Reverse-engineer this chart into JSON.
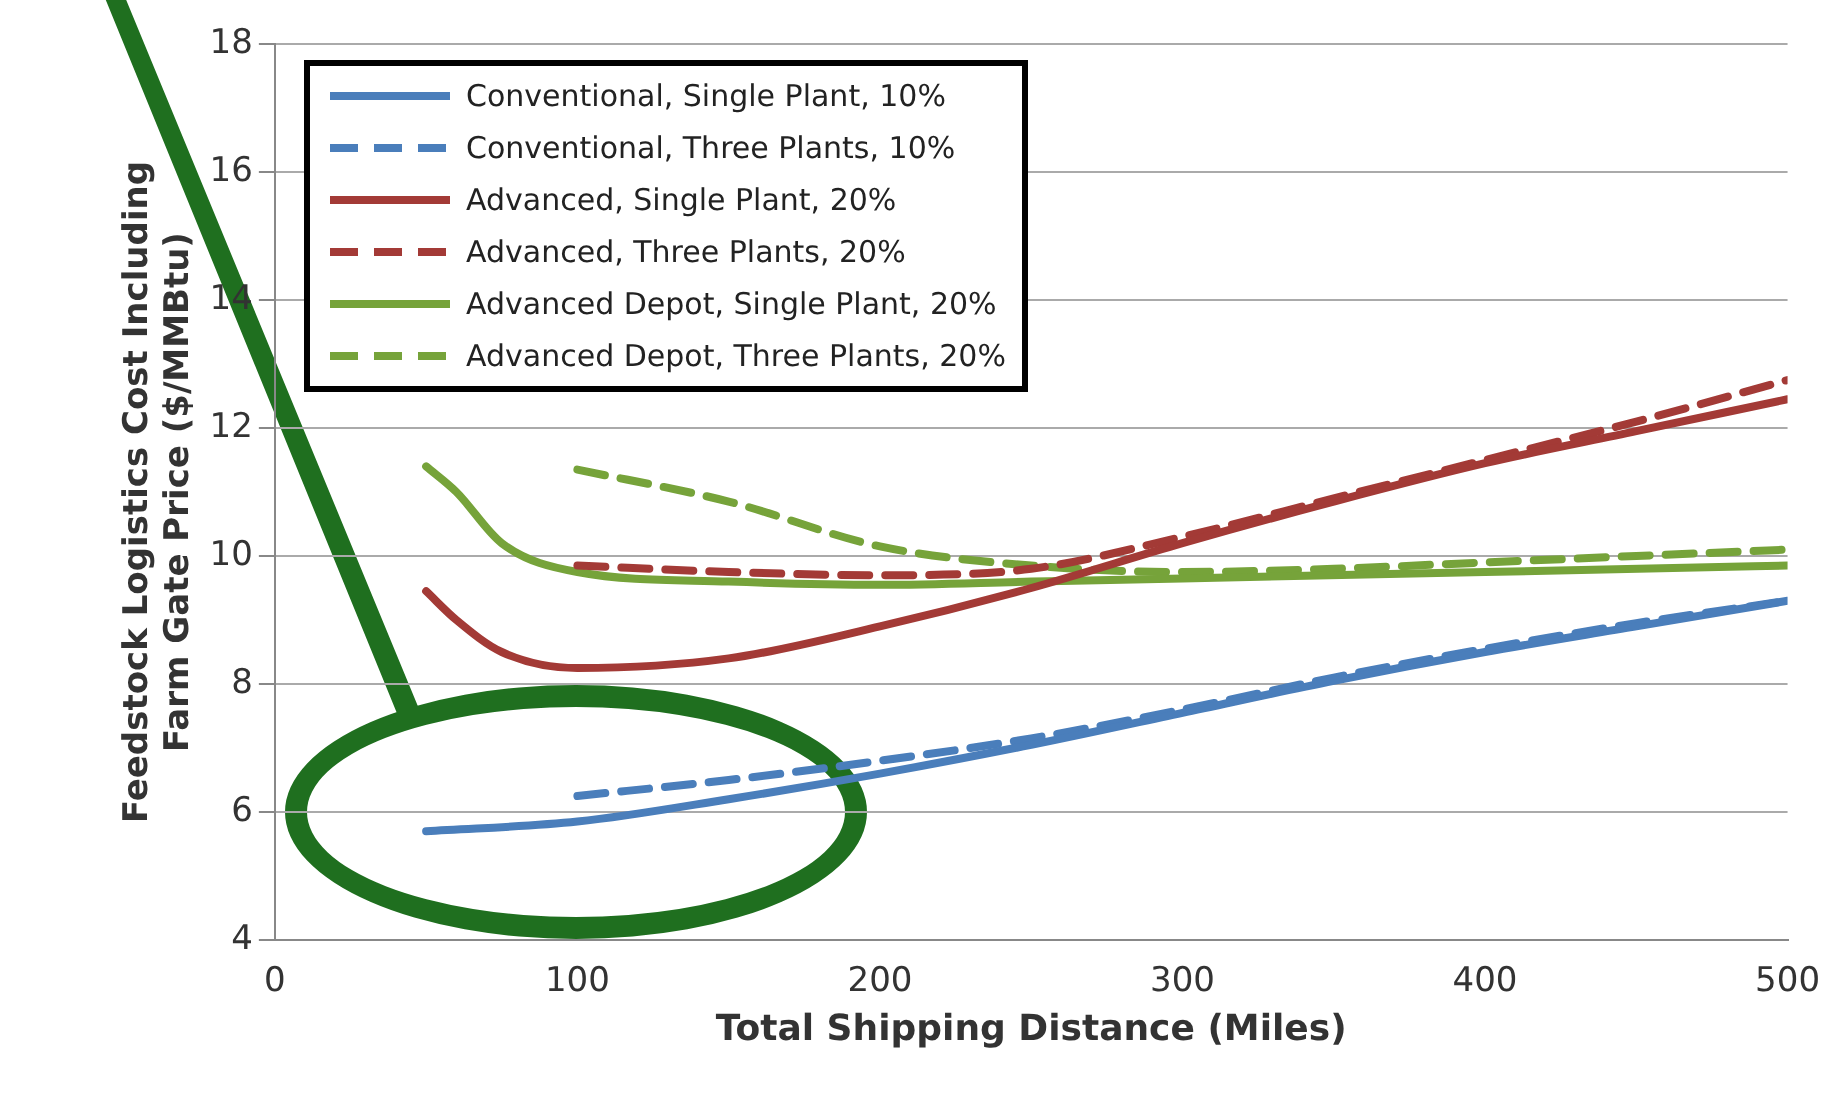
{
  "chart_data": {
    "type": "line",
    "xlabel": "Total Shipping Distance (Miles)",
    "ylabel": "Feedstock Logistics Cost Including Farm Gate Price ($/MMBtu)",
    "xlim": [
      0,
      500
    ],
    "xticks": [
      0,
      100,
      200,
      300,
      400,
      500
    ],
    "ylim": [
      4,
      18
    ],
    "yticks": [
      4,
      6,
      8,
      10,
      12,
      14,
      16,
      18
    ],
    "grid": "y",
    "legend": "top left",
    "marker": "none",
    "series": [
      {
        "name": "Conventional, Single Plant, 10%",
        "color": "#4a7ebb",
        "line_style": "solid",
        "x": [
          50,
          100,
          150,
          200,
          250,
          300,
          350,
          400,
          450,
          500
        ],
        "values": [
          5.7,
          5.85,
          6.2,
          6.6,
          7.05,
          7.55,
          8.05,
          8.5,
          8.9,
          9.3
        ]
      },
      {
        "name": "Conventional, Three Plants, 10%",
        "color": "#4a7ebb",
        "line_style": "dashed",
        "x": [
          100,
          150,
          200,
          250,
          300,
          350,
          400,
          450,
          500
        ],
        "values": [
          6.25,
          6.5,
          6.8,
          7.15,
          7.6,
          8.1,
          8.55,
          8.95,
          9.3
        ]
      },
      {
        "name": "Advanced, Single Plant, 20%",
        "color": "#a33a36",
        "line_style": "solid",
        "x": [
          50,
          60,
          75,
          100,
          150,
          200,
          250,
          300,
          350,
          400,
          450,
          500
        ],
        "values": [
          9.45,
          9.0,
          8.5,
          8.25,
          8.4,
          8.9,
          9.5,
          10.2,
          10.85,
          11.45,
          11.95,
          12.45
        ]
      },
      {
        "name": "Advanced, Three Plants, 20%",
        "color": "#a33a36",
        "line_style": "dashed",
        "x": [
          100,
          150,
          200,
          250,
          300,
          350,
          400,
          450,
          500
        ],
        "values": [
          9.85,
          9.75,
          9.7,
          9.8,
          10.3,
          10.9,
          11.5,
          12.1,
          12.75
        ]
      },
      {
        "name": "Advanced Depot, Single Plant, 20%",
        "color": "#76a33a",
        "line_style": "solid",
        "x": [
          50,
          60,
          75,
          100,
          150,
          200,
          250,
          300,
          400,
          500
        ],
        "values": [
          11.4,
          11.0,
          10.2,
          9.75,
          9.6,
          9.55,
          9.6,
          9.65,
          9.75,
          9.85
        ]
      },
      {
        "name": "Advanced Depot, Three Plants, 20%",
        "color": "#76a33a",
        "line_style": "dashed",
        "x": [
          100,
          150,
          200,
          250,
          300,
          350,
          400,
          450,
          500
        ],
        "values": [
          11.35,
          10.85,
          10.15,
          9.85,
          9.75,
          9.8,
          9.9,
          10.0,
          10.1
        ]
      }
    ]
  }
}
